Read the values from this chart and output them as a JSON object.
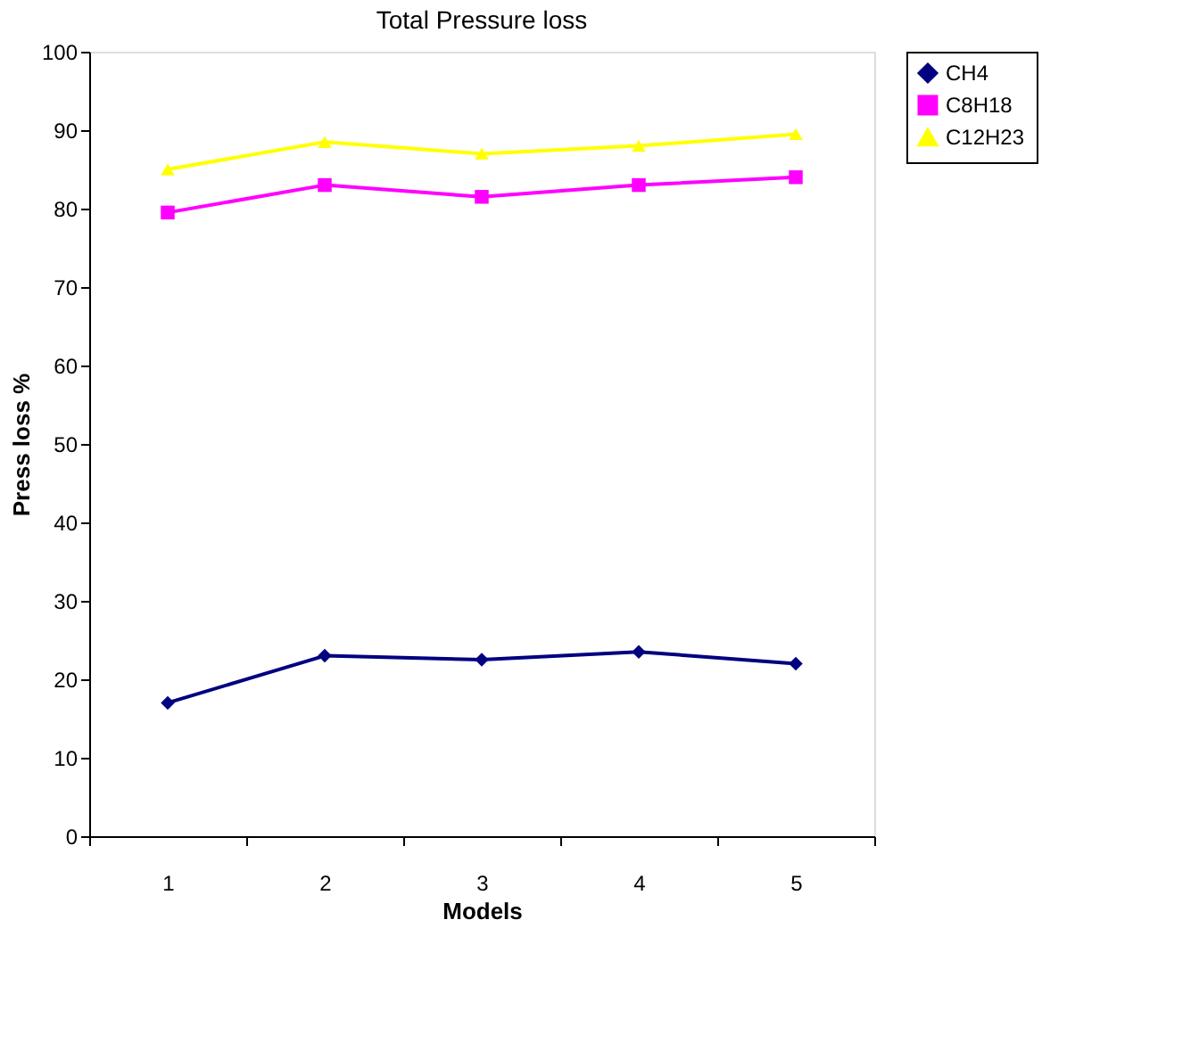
{
  "chart_data": {
    "type": "line",
    "title": "Total Pressure loss",
    "xlabel": "Models",
    "ylabel": "Press loss %",
    "categories": [
      "1",
      "2",
      "3",
      "4",
      "5"
    ],
    "series": [
      {
        "name": "CH4",
        "color": "#000080",
        "marker": "diamond",
        "values": [
          17,
          23,
          22.5,
          23.5,
          22
        ]
      },
      {
        "name": "C8H18",
        "color": "#ff00ff",
        "marker": "square",
        "values": [
          79.5,
          83,
          81.5,
          83,
          84
        ]
      },
      {
        "name": "C12H23",
        "color": "#ffff00",
        "marker": "triangle",
        "values": [
          85,
          88.5,
          87,
          88,
          89.5
        ]
      }
    ],
    "ylim": [
      0,
      100
    ],
    "yticks": [
      0,
      10,
      20,
      30,
      40,
      50,
      60,
      70,
      80,
      90,
      100
    ],
    "grid": false,
    "legend": "right",
    "line_style": "solid"
  }
}
